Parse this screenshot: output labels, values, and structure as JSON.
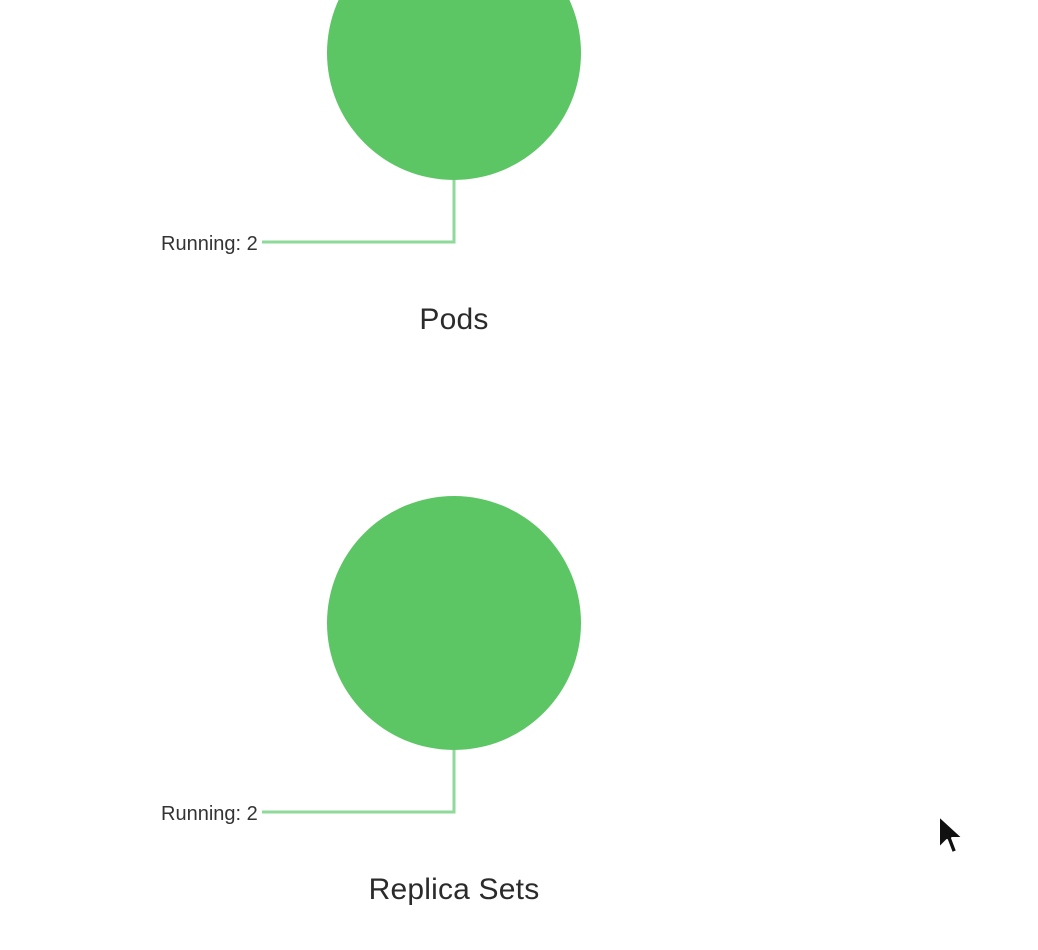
{
  "cards": [
    {
      "title": "Pods",
      "chart_data": {
        "type": "pie",
        "categories": [
          "Running"
        ],
        "values": [
          2
        ],
        "colors": [
          "#5cc564"
        ],
        "labels": [
          "Running: 2"
        ]
      }
    },
    {
      "title": "Replica Sets",
      "chart_data": {
        "type": "pie",
        "categories": [
          "Running"
        ],
        "values": [
          2
        ],
        "colors": [
          "#5cc564"
        ],
        "labels": [
          "Running: 2"
        ]
      }
    }
  ],
  "leader_color": "#8fd99a",
  "cursor_icon": "mouse-pointer-icon"
}
